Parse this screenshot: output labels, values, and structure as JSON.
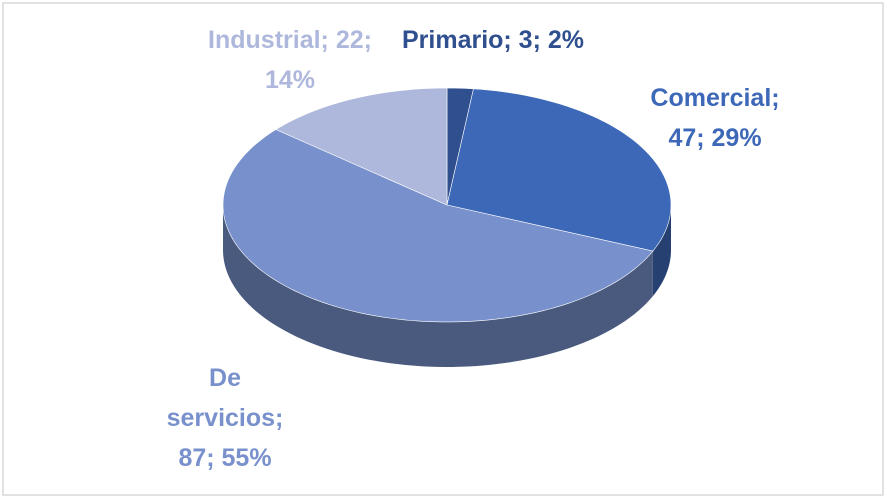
{
  "chart_data": {
    "type": "pie",
    "categories": [
      "Primario",
      "Comercial",
      "De servicios",
      "Industrial"
    ],
    "values": [
      3,
      47,
      87,
      22
    ],
    "value_labels": [
      "Primario; 3; 2%",
      "Comercial; 47; 29%",
      "De servicios; 87; 55%",
      "Industrial; 22; 14%"
    ],
    "colors": [
      "#2f4f8f",
      "#3d68b8",
      "#7891cc",
      "#aeb8dc"
    ]
  }
}
